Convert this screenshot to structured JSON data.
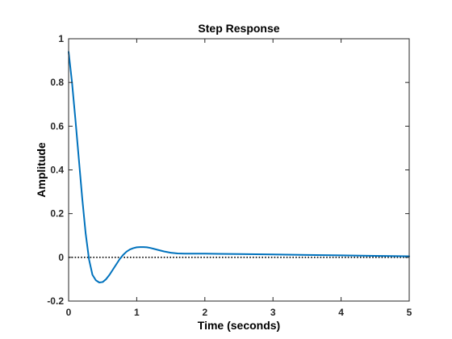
{
  "chart_data": {
    "type": "line",
    "title": "Step Response",
    "xlabel": "Time (seconds)",
    "ylabel": "Amplitude",
    "xlim": [
      0,
      5
    ],
    "ylim": [
      -0.2,
      1
    ],
    "xticks": [
      0,
      1,
      2,
      3,
      4,
      5
    ],
    "xtick_labels": [
      "0",
      "1",
      "2",
      "3",
      "4",
      "5"
    ],
    "yticks": [
      -0.2,
      0,
      0.2,
      0.4,
      0.6,
      0.8,
      1
    ],
    "ytick_labels": [
      "-0.2",
      "0",
      "0.2",
      "0.4",
      "0.6",
      "0.8",
      "1"
    ],
    "grid": false,
    "reference_line": {
      "y": 0,
      "style": "dotted",
      "color": "#000000"
    },
    "series": [
      {
        "color": "#0072BD",
        "x": [
          0,
          0.05,
          0.1,
          0.15,
          0.2,
          0.25,
          0.3,
          0.35,
          0.4,
          0.45,
          0.5,
          0.55,
          0.6,
          0.65,
          0.7,
          0.75,
          0.8,
          0.85,
          0.9,
          0.95,
          1.0,
          1.05,
          1.1,
          1.15,
          1.2,
          1.25,
          1.3,
          1.4,
          1.5,
          1.6,
          1.7,
          1.8,
          2.0,
          2.2,
          2.5,
          3.0,
          3.5,
          4.0,
          4.5,
          5.0
        ],
        "y": [
          0.94,
          0.8,
          0.63,
          0.45,
          0.27,
          0.11,
          -0.01,
          -0.08,
          -0.105,
          -0.115,
          -0.113,
          -0.1,
          -0.08,
          -0.056,
          -0.032,
          -0.008,
          0.011,
          0.026,
          0.036,
          0.042,
          0.046,
          0.047,
          0.047,
          0.046,
          0.043,
          0.039,
          0.035,
          0.027,
          0.021,
          0.018,
          0.017,
          0.017,
          0.017,
          0.016,
          0.015,
          0.013,
          0.011,
          0.009,
          0.007,
          0.005
        ]
      }
    ]
  }
}
